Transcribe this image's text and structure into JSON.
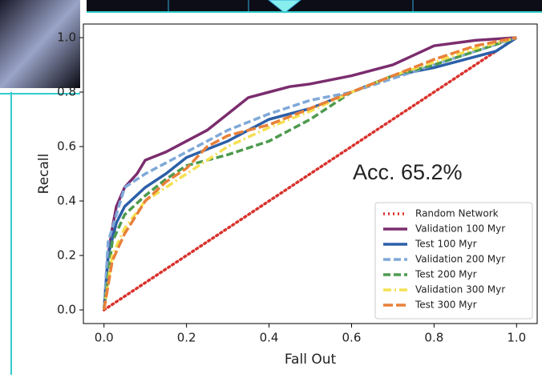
{
  "chart_data": {
    "type": "line",
    "xlabel": "Fall Out",
    "ylabel": "Recall",
    "annotation": "Acc. 65.2%",
    "xlim": [
      -0.05,
      1.05
    ],
    "ylim": [
      -0.05,
      1.05
    ],
    "xticks": [
      {
        "value": 0,
        "label": "0.0"
      },
      0.2,
      0.4,
      0.6,
      0.8,
      {
        "value": 1,
        "label": "1.0"
      }
    ],
    "yticks": [
      {
        "value": 0,
        "label": "0.0"
      },
      0.2,
      0.4,
      0.6,
      0.8,
      {
        "value": 1,
        "label": "1.0"
      }
    ],
    "legend": "lower right",
    "series": [
      {
        "name": "Random Network",
        "color": "#d9312b",
        "style": "dotted",
        "x": [
          0,
          1
        ],
        "values": [
          0,
          1
        ]
      },
      {
        "name": "Validation 100 Myr",
        "color": "#7b2d6e",
        "style": "solid",
        "x": [
          0,
          0.01,
          0.02,
          0.03,
          0.05,
          0.08,
          0.1,
          0.15,
          0.2,
          0.25,
          0.3,
          0.35,
          0.4,
          0.45,
          0.5,
          0.6,
          0.7,
          0.8,
          0.9,
          1.0
        ],
        "values": [
          0,
          0.2,
          0.3,
          0.38,
          0.45,
          0.5,
          0.55,
          0.58,
          0.62,
          0.66,
          0.72,
          0.78,
          0.8,
          0.82,
          0.83,
          0.86,
          0.9,
          0.97,
          0.99,
          1.0
        ]
      },
      {
        "name": "Test 100 Myr",
        "color": "#2c5fa8",
        "style": "solid",
        "x": [
          0,
          0.01,
          0.03,
          0.05,
          0.1,
          0.15,
          0.2,
          0.25,
          0.3,
          0.4,
          0.5,
          0.6,
          0.7,
          0.8,
          0.9,
          0.95,
          1
        ],
        "values": [
          0,
          0.2,
          0.32,
          0.38,
          0.45,
          0.5,
          0.56,
          0.59,
          0.62,
          0.7,
          0.74,
          0.8,
          0.86,
          0.89,
          0.93,
          0.95,
          1
        ]
      },
      {
        "name": "Validation 200 Myr",
        "color": "#7fa8d8",
        "style": "dashed",
        "x": [
          0,
          0.01,
          0.03,
          0.05,
          0.1,
          0.15,
          0.2,
          0.3,
          0.4,
          0.5,
          0.6,
          0.7,
          0.8,
          0.9,
          1
        ],
        "values": [
          0,
          0.25,
          0.35,
          0.45,
          0.5,
          0.54,
          0.58,
          0.66,
          0.72,
          0.77,
          0.8,
          0.85,
          0.9,
          0.95,
          1
        ]
      },
      {
        "name": "Test 200 Myr",
        "color": "#4e9a4e",
        "style": "dashed",
        "x": [
          0,
          0.02,
          0.05,
          0.1,
          0.15,
          0.2,
          0.3,
          0.4,
          0.5,
          0.6,
          0.7,
          0.8,
          0.9,
          1
        ],
        "values": [
          0,
          0.25,
          0.35,
          0.42,
          0.48,
          0.53,
          0.57,
          0.62,
          0.7,
          0.8,
          0.86,
          0.9,
          0.95,
          1
        ]
      },
      {
        "name": "Validation 300 Myr",
        "color": "#f5e050",
        "style": "dashdot",
        "x": [
          0,
          0.02,
          0.05,
          0.1,
          0.15,
          0.2,
          0.25,
          0.3,
          0.4,
          0.5,
          0.6,
          0.7,
          0.8,
          0.9,
          1
        ],
        "values": [
          0,
          0.2,
          0.3,
          0.4,
          0.45,
          0.5,
          0.55,
          0.6,
          0.67,
          0.73,
          0.8,
          0.86,
          0.91,
          0.96,
          1
        ]
      },
      {
        "name": "Test 300 Myr",
        "color": "#e8803a",
        "style": "longdash",
        "x": [
          0,
          0.02,
          0.05,
          0.1,
          0.15,
          0.2,
          0.25,
          0.3,
          0.4,
          0.5,
          0.6,
          0.7,
          0.8,
          0.9,
          1
        ],
        "values": [
          0,
          0.18,
          0.28,
          0.4,
          0.47,
          0.52,
          0.6,
          0.64,
          0.68,
          0.74,
          0.8,
          0.86,
          0.92,
          0.97,
          1
        ]
      }
    ]
  }
}
